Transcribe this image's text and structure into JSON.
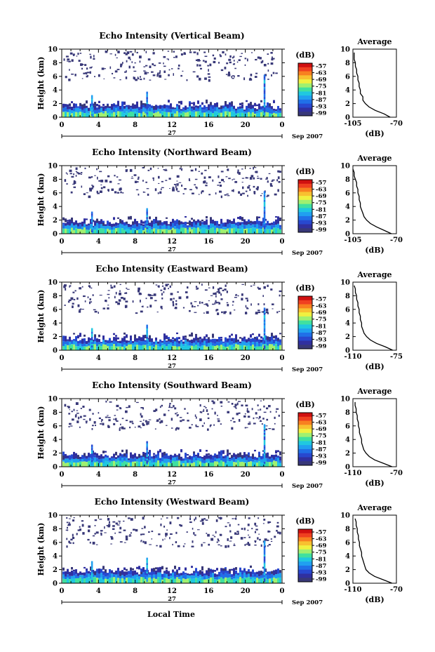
{
  "chart_data": {
    "type": "heatmap",
    "month_label": "Sep 2007",
    "date_label": "27",
    "xlabel": "Local Time",
    "ylabel": "Height (km)",
    "x_ticks": [
      "0",
      "4",
      "8",
      "12",
      "16",
      "20",
      "0"
    ],
    "xlim_hours": [
      0,
      24
    ],
    "ylim_km": [
      0,
      10
    ],
    "y_ticks": [
      "0",
      "2",
      "4",
      "6",
      "8",
      "10"
    ],
    "colorbar": {
      "unit": "(dB)",
      "ticks": [
        "-57",
        "-63",
        "-69",
        "-75",
        "-81",
        "-87",
        "-93",
        "-99"
      ],
      "colors": [
        "#d01010",
        "#f04020",
        "#f88020",
        "#f8c030",
        "#f0f040",
        "#a0f070",
        "#40e0a0",
        "#20c8e0",
        "#20a0f0",
        "#2070e8",
        "#2848d0",
        "#3030a0",
        "#383878"
      ]
    },
    "average_profile": {
      "title": "Average",
      "xlabel": "(dB)",
      "heights_km": [
        0,
        0.5,
        1,
        1.5,
        2,
        2.5,
        3,
        3.5,
        4,
        4.5,
        5,
        5.5,
        6,
        6.5,
        7,
        7.5,
        8,
        8.5,
        9,
        9.5
      ]
    },
    "panels": [
      {
        "title": "Echo Intensity (Vertical Beam)",
        "avg_xlim": [
          -105,
          -70
        ],
        "avg_x_ticks": [
          "-105",
          "-70"
        ],
        "avg_values_db": [
          -75,
          -80,
          -87,
          -92,
          -95,
          -97,
          -97,
          -99,
          -99,
          -100,
          -100,
          -101,
          -101,
          -102,
          -102,
          -103,
          -103,
          -104,
          -104,
          -104
        ]
      },
      {
        "title": "Echo Intensity (Northward Beam)",
        "avg_xlim": [
          -105,
          -70
        ],
        "avg_x_ticks": [
          "-105",
          "-70"
        ],
        "avg_values_db": [
          -74,
          -80,
          -86,
          -91,
          -94,
          -96,
          -97,
          -98,
          -99,
          -99,
          -100,
          -100,
          -101,
          -101,
          -102,
          -102,
          -103,
          -104,
          -104,
          -105
        ]
      },
      {
        "title": "Echo Intensity (Eastward Beam)",
        "avg_xlim": [
          -110,
          -75
        ],
        "avg_x_ticks": [
          "-110",
          "-75"
        ],
        "avg_values_db": [
          -78,
          -84,
          -91,
          -96,
          -99,
          -101,
          -102,
          -103,
          -103,
          -104,
          -104,
          -105,
          -105,
          -106,
          -106,
          -107,
          -107,
          -108,
          -108,
          -109
        ]
      },
      {
        "title": "Echo Intensity (Southward Beam)",
        "avg_xlim": [
          -110,
          -70
        ],
        "avg_x_ticks": [
          "-110",
          "-70"
        ],
        "avg_values_db": [
          -74,
          -82,
          -90,
          -95,
          -98,
          -100,
          -101,
          -102,
          -102,
          -103,
          -104,
          -104,
          -105,
          -105,
          -106,
          -106,
          -107,
          -107,
          -108,
          -108
        ]
      },
      {
        "title": "Echo Intensity (Westward Beam)",
        "avg_xlim": [
          -110,
          -70
        ],
        "avg_x_ticks": [
          "-110",
          "-70"
        ],
        "avg_values_db": [
          -74,
          -82,
          -90,
          -95,
          -98,
          -99,
          -100,
          -101,
          -102,
          -102,
          -103,
          -104,
          -104,
          -105,
          -105,
          -106,
          -106,
          -107,
          -107,
          -108
        ]
      }
    ]
  }
}
